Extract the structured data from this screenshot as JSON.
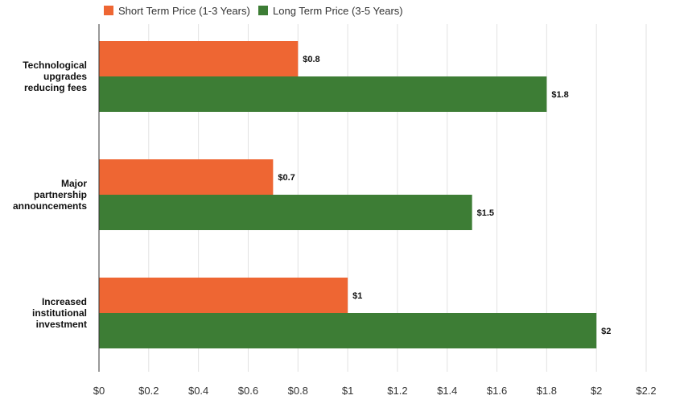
{
  "colors": {
    "short_term": "#ee6633",
    "long_term": "#3d7d35",
    "grid": "#e2e2e2",
    "axis": "#333333"
  },
  "chart_data": {
    "type": "bar",
    "orientation": "horizontal",
    "categories": [
      [
        "Technological",
        "upgrades",
        "reducing fees"
      ],
      [
        "Major",
        "partnership",
        "announcements"
      ],
      [
        "Increased",
        "institutional",
        "investment"
      ]
    ],
    "series": [
      {
        "name": "Short Term Price (1-3 Years)",
        "values": [
          0.8,
          0.7,
          1.0
        ],
        "labels": [
          "$0.8",
          "$0.7",
          "$1"
        ]
      },
      {
        "name": "Long Term Price (3-5 Years)",
        "values": [
          1.8,
          1.5,
          2.0
        ],
        "labels": [
          "$1.8",
          "$1.5",
          "$2"
        ]
      }
    ],
    "x_ticks": [
      0,
      0.2,
      0.4,
      0.6,
      0.8,
      1,
      1.2,
      1.4,
      1.6,
      1.8,
      2,
      2.2
    ],
    "x_tick_labels": [
      "$0",
      "$0.2",
      "$0.4",
      "$0.6",
      "$0.8",
      "$1",
      "$1.2",
      "$1.4",
      "$1.6",
      "$1.8",
      "$2",
      "$2.2"
    ],
    "xlim": [
      0,
      2.2
    ],
    "grid": true,
    "legend_position": "top-left",
    "title": "",
    "xlabel": "",
    "ylabel": ""
  }
}
